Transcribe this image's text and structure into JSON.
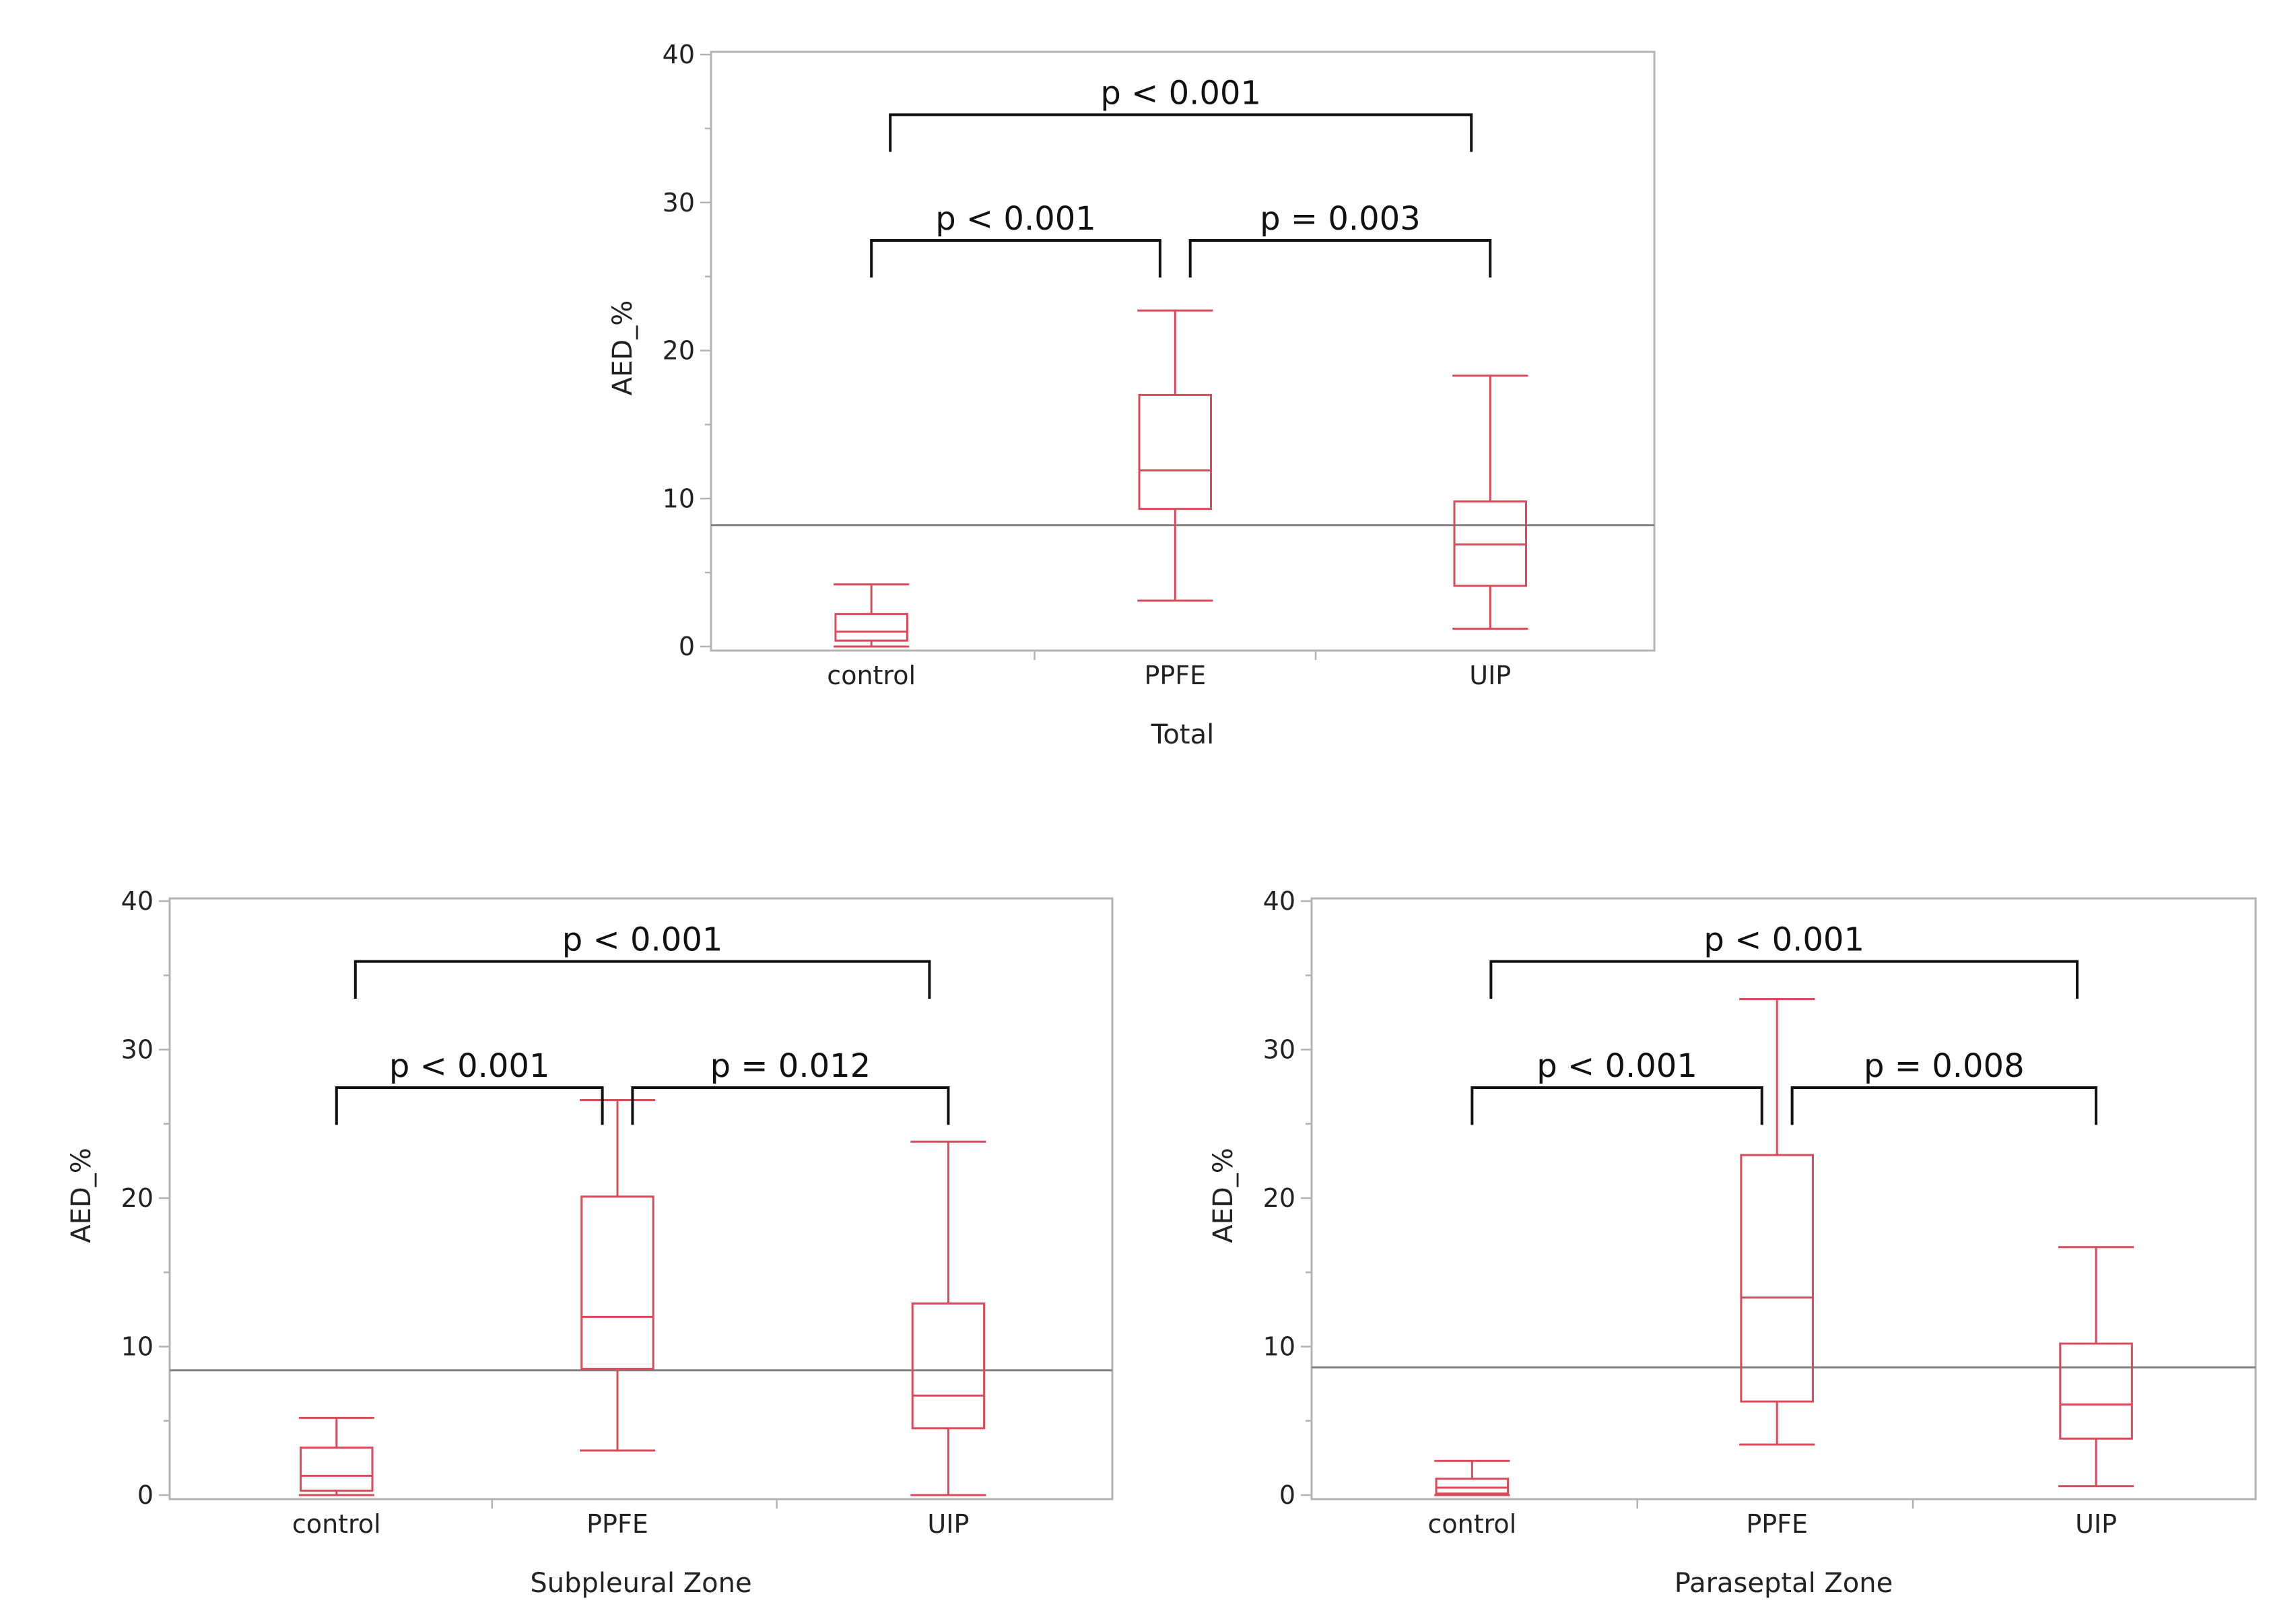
{
  "colors": {
    "box": "#d94a5a",
    "frame": "#b3b3b3",
    "reference_line": "#808080",
    "bracket": "#111111"
  },
  "chart_data": [
    {
      "type": "boxplot",
      "xlabel": "Total",
      "ylabel": "AED_%",
      "ylim": [
        0,
        40
      ],
      "yticks": [
        0,
        10,
        20,
        30,
        40
      ],
      "categories": [
        "control",
        "PPFE",
        "UIP"
      ],
      "boxes": [
        {
          "category": "control",
          "min": 0.0,
          "q1": 0.4,
          "median": 1.0,
          "q3": 2.2,
          "max": 4.2
        },
        {
          "category": "PPFE",
          "min": 3.1,
          "q1": 9.3,
          "median": 11.9,
          "q3": 17.0,
          "max": 22.7
        },
        {
          "category": "UIP",
          "min": 1.2,
          "q1": 4.1,
          "median": 6.9,
          "q3": 9.8,
          "max": 18.3
        }
      ],
      "reference_line": 8.2,
      "grid": false,
      "annotations": [
        {
          "label": "p < 0.001",
          "from": "control",
          "to": "UIP",
          "level": 2
        },
        {
          "label": "p < 0.001",
          "from": "control",
          "to": "PPFE",
          "level": 1
        },
        {
          "label": "p = 0.003",
          "from": "PPFE",
          "to": "UIP",
          "level": 1
        }
      ]
    },
    {
      "type": "boxplot",
      "xlabel": "Subpleural Zone",
      "ylabel": "AED_%",
      "ylim": [
        0,
        40
      ],
      "yticks": [
        0,
        10,
        20,
        30,
        40
      ],
      "categories": [
        "control",
        "PPFE",
        "UIP"
      ],
      "boxes": [
        {
          "category": "control",
          "min": 0.0,
          "q1": 0.3,
          "median": 1.3,
          "q3": 3.2,
          "max": 5.2
        },
        {
          "category": "PPFE",
          "min": 3.0,
          "q1": 8.5,
          "median": 12.0,
          "q3": 20.1,
          "max": 26.6
        },
        {
          "category": "UIP",
          "min": 0.0,
          "q1": 4.5,
          "median": 6.7,
          "q3": 12.9,
          "max": 23.8
        }
      ],
      "reference_line": 8.4,
      "grid": false,
      "annotations": [
        {
          "label": "p < 0.001",
          "from": "control",
          "to": "UIP",
          "level": 2
        },
        {
          "label": "p < 0.001",
          "from": "control",
          "to": "PPFE",
          "level": 1
        },
        {
          "label": "p = 0.012",
          "from": "PPFE",
          "to": "UIP",
          "level": 1
        }
      ]
    },
    {
      "type": "boxplot",
      "xlabel": "Paraseptal Zone",
      "ylabel": "AED_%",
      "ylim": [
        0,
        40
      ],
      "yticks": [
        0,
        10,
        20,
        30,
        40
      ],
      "categories": [
        "control",
        "PPFE",
        "UIP"
      ],
      "boxes": [
        {
          "category": "control",
          "min": 0.0,
          "q1": 0.1,
          "median": 0.5,
          "q3": 1.1,
          "max": 2.3
        },
        {
          "category": "PPFE",
          "min": 3.4,
          "q1": 6.3,
          "median": 13.3,
          "q3": 22.9,
          "max": 33.4
        },
        {
          "category": "UIP",
          "min": 0.6,
          "q1": 3.8,
          "median": 6.1,
          "q3": 10.2,
          "max": 16.7
        }
      ],
      "reference_line": 8.6,
      "grid": false,
      "annotations": [
        {
          "label": "p < 0.001",
          "from": "control",
          "to": "UIP",
          "level": 2
        },
        {
          "label": "p < 0.001",
          "from": "control",
          "to": "PPFE",
          "level": 1
        },
        {
          "label": "p = 0.008",
          "from": "PPFE",
          "to": "UIP",
          "level": 1
        }
      ]
    }
  ]
}
